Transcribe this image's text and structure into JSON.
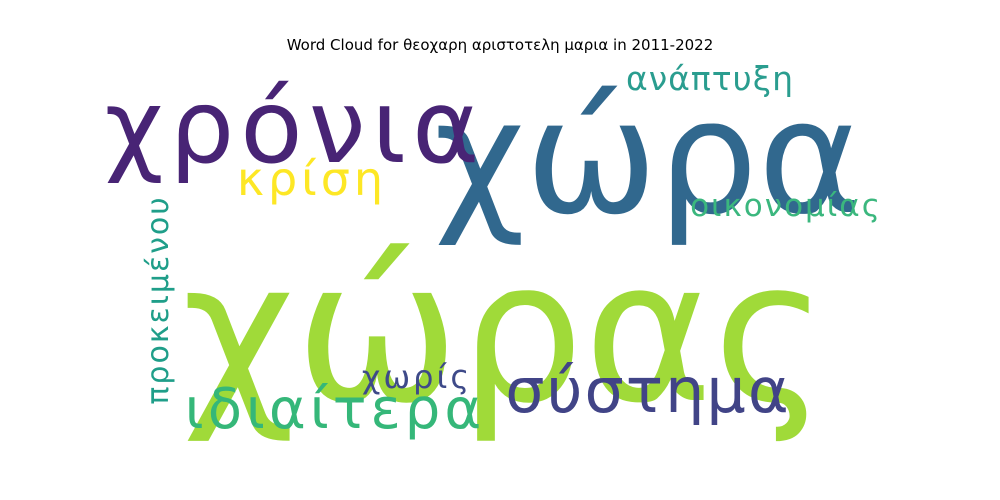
{
  "title": "Word Cloud for θεοχαρη αριστοτελη μαρια in 2011-2022",
  "chart_data": {
    "type": "wordcloud",
    "title": "Word Cloud for θεοχαρη αριστοτελη μαρια in 2011-2022",
    "words": [
      {
        "text": "χώρας",
        "weight": 1.0,
        "color": "#a0da39",
        "orientation": "horizontal"
      },
      {
        "text": "χώρα",
        "weight": 0.75,
        "color": "#31688e",
        "orientation": "horizontal"
      },
      {
        "text": "χρόνια",
        "weight": 0.55,
        "color": "#482475",
        "orientation": "horizontal"
      },
      {
        "text": "σύστημα",
        "weight": 0.38,
        "color": "#414487",
        "orientation": "horizontal"
      },
      {
        "text": "ιδιαίτερα",
        "weight": 0.32,
        "color": "#35b779",
        "orientation": "horizontal"
      },
      {
        "text": "κρίση",
        "weight": 0.28,
        "color": "#fde725",
        "orientation": "horizontal"
      },
      {
        "text": "προκειμένου",
        "weight": 0.22,
        "color": "#1f9e89",
        "orientation": "vertical"
      },
      {
        "text": "ανάπτυξη",
        "weight": 0.2,
        "color": "#2a9d8f",
        "orientation": "horizontal"
      },
      {
        "text": "οικονομίας",
        "weight": 0.19,
        "color": "#3bb77e",
        "orientation": "horizontal"
      },
      {
        "text": "χωρίς",
        "weight": 0.17,
        "color": "#3e4a89",
        "orientation": "horizontal"
      }
    ]
  }
}
